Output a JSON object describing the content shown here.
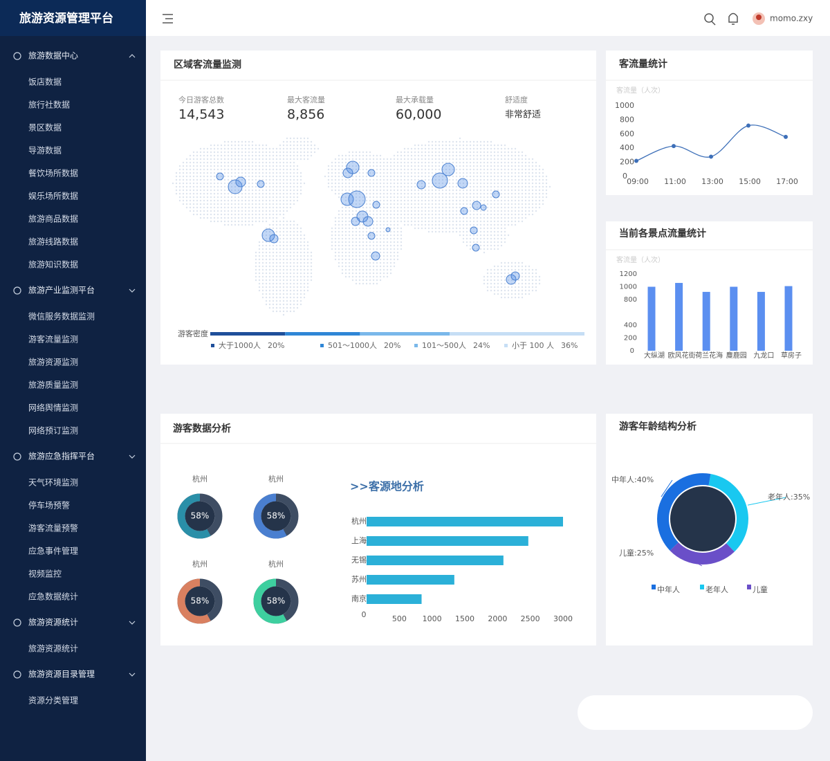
{
  "sidebar": {
    "title": "旅游资源管理平台",
    "groups": [
      {
        "label": "旅游数据中心",
        "items": [
          "饭店数据",
          "旅行社数据",
          "景区数据",
          "导游数据",
          "餐饮场所数据",
          "娱乐场所数据",
          "旅游商品数据",
          "旅游线路数据",
          "旅游知识数据"
        ]
      },
      {
        "label": "旅游产业监测平台",
        "items": [
          "微信服务数据监测",
          "游客流量监测",
          "旅游资源监测",
          "旅游质量监测",
          "网络舆情监测",
          "网络预订监测"
        ]
      },
      {
        "label": "旅游应急指挥平台",
        "items": [
          "天气环境监测",
          "停车场预警",
          "游客流量预警",
          "应急事件管理",
          "视频监控",
          "应急数据统计"
        ]
      },
      {
        "label": "旅游资源统计",
        "items": [
          "旅游资源统计"
        ]
      },
      {
        "label": "旅游资源目录管理",
        "items": [
          "资源分类管理"
        ]
      }
    ]
  },
  "header": {
    "user": "momo.zxy"
  },
  "monitor": {
    "title": "区域客流量监测",
    "stats": [
      {
        "label": "今日游客总数",
        "value": "14,543"
      },
      {
        "label": "最大客流量",
        "value": "8,856"
      },
      {
        "label": "最大承载量",
        "value": "60,000"
      },
      {
        "label": "舒适度",
        "value": "非常舒适"
      }
    ],
    "density": {
      "label": "游客密度",
      "categories": [
        "大于1000人",
        "501～1000人",
        "101～500人",
        "小于 100 人"
      ],
      "values": [
        20,
        20,
        24,
        36
      ],
      "value_labels": [
        "20%",
        "20%",
        "24%",
        "36%"
      ],
      "colors": [
        "#1f4f9a",
        "#2f86d6",
        "#7ab8ea",
        "#c6def5"
      ]
    }
  },
  "analysis": {
    "title": "游客数据分析"
  },
  "chart_data": [
    {
      "type": "line",
      "title": "客流量统计",
      "y_label": "客流量（人次）",
      "categories": [
        "09:00",
        "11:00",
        "13:00",
        "15:00",
        "17:00"
      ],
      "values": [
        220,
        430,
        280,
        720,
        560
      ],
      "color": "#3d6fb8",
      "ylim": [
        0,
        1000
      ],
      "yticks": [
        0,
        200,
        400,
        600,
        800,
        1000
      ]
    },
    {
      "type": "bar",
      "title": "当前各景点流量统计",
      "y_label": "客流量（人次）",
      "categories": [
        "大纵湖",
        "欧风花街",
        "荷兰花海",
        "麋鹿园",
        "九龙口",
        "草房子"
      ],
      "values": [
        1000,
        1060,
        920,
        1000,
        920,
        1010
      ],
      "color": "#5b8ff0",
      "ylim": [
        0,
        1200
      ],
      "yticks": [
        0,
        200,
        400,
        800,
        1000,
        1200
      ]
    },
    {
      "type": "donut",
      "title": "杭州",
      "value": 58,
      "value_label": "58%",
      "color": "#2a8fa8"
    },
    {
      "type": "donut",
      "title": "杭州",
      "value": 58,
      "value_label": "58%",
      "color": "#4a7fd0"
    },
    {
      "type": "donut",
      "title": "杭州",
      "value": 58,
      "value_label": "58%",
      "color": "#d98060"
    },
    {
      "type": "donut",
      "title": "杭州",
      "value": 58,
      "value_label": "58%",
      "color": "#3ecf9f"
    },
    {
      "type": "hbar",
      "title": ">>客源地分析",
      "categories": [
        "杭州",
        "上海",
        "无锡",
        "苏州",
        "南京"
      ],
      "values": [
        3000,
        2470,
        2090,
        1340,
        840
      ],
      "color": "#2bb0d8",
      "xlim": [
        0,
        3000
      ],
      "xticks": [
        0,
        500,
        1000,
        1500,
        2000,
        2500,
        3000
      ]
    },
    {
      "type": "pie",
      "title": "游客年龄结构分析",
      "categories": [
        "中年人",
        "老年人",
        "儿童"
      ],
      "values": [
        40,
        35,
        25
      ],
      "value_labels": [
        "中年人:40%",
        "老年人:35%",
        "儿童:25%"
      ],
      "colors": [
        "#1a6fe0",
        "#19c8f0",
        "#6a4fc8"
      ]
    }
  ]
}
